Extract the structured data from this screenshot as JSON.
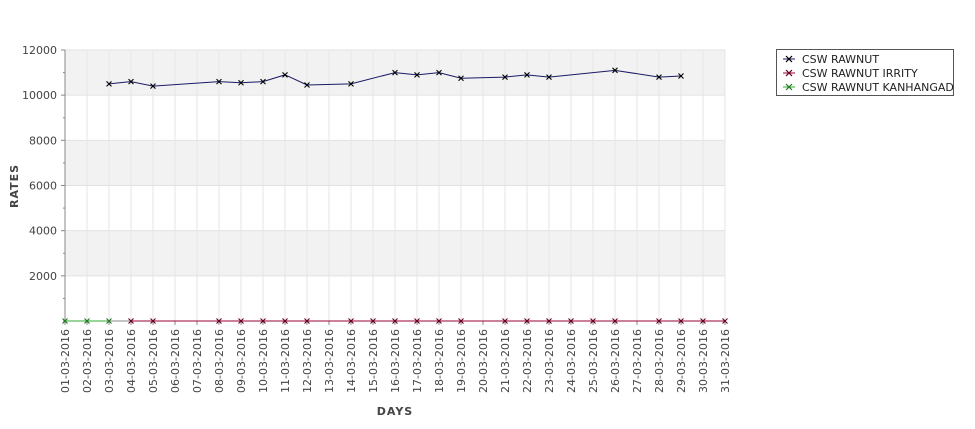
{
  "chart_data": {
    "type": "line",
    "title": "",
    "xlabel": "DAYS",
    "ylabel": "RATES",
    "ylim": [
      0,
      12000
    ],
    "yticks": [
      2000,
      4000,
      6000,
      8000,
      10000,
      12000
    ],
    "grid": true,
    "legend_position": "top-right",
    "categories": [
      "01-03-2016",
      "02-03-2016",
      "03-03-2016",
      "04-03-2016",
      "05-03-2016",
      "06-03-2016",
      "07-03-2016",
      "08-03-2016",
      "09-03-2016",
      "10-03-2016",
      "11-03-2016",
      "12-03-2016",
      "13-03-2016",
      "14-03-2016",
      "15-03-2016",
      "16-03-2016",
      "17-03-2016",
      "18-03-2016",
      "19-03-2016",
      "20-03-2016",
      "21-03-2016",
      "22-03-2016",
      "23-03-2016",
      "24-03-2016",
      "25-03-2016",
      "26-03-2016",
      "27-03-2016",
      "28-03-2016",
      "29-03-2016",
      "30-03-2016",
      "31-03-2016"
    ],
    "series": [
      {
        "name": "CSW RAWNUT",
        "color": "#1a1a66",
        "points": [
          [
            "03-03-2016",
            10500
          ],
          [
            "04-03-2016",
            10600
          ],
          [
            "05-03-2016",
            10400
          ],
          [
            "08-03-2016",
            10600
          ],
          [
            "09-03-2016",
            10550
          ],
          [
            "10-03-2016",
            10600
          ],
          [
            "11-03-2016",
            10900
          ],
          [
            "12-03-2016",
            10450
          ],
          [
            "14-03-2016",
            10500
          ],
          [
            "16-03-2016",
            11000
          ],
          [
            "17-03-2016",
            10900
          ],
          [
            "18-03-2016",
            11000
          ],
          [
            "19-03-2016",
            10750
          ],
          [
            "21-03-2016",
            10800
          ],
          [
            "22-03-2016",
            10900
          ],
          [
            "23-03-2016",
            10800
          ],
          [
            "26-03-2016",
            11100
          ],
          [
            "28-03-2016",
            10800
          ],
          [
            "29-03-2016",
            10850
          ]
        ]
      },
      {
        "name": "CSW RAWNUT IRRITY",
        "color": "#990033",
        "points": [
          [
            "04-03-2016",
            0
          ],
          [
            "05-03-2016",
            0
          ],
          [
            "08-03-2016",
            0
          ],
          [
            "09-03-2016",
            0
          ],
          [
            "10-03-2016",
            0
          ],
          [
            "11-03-2016",
            0
          ],
          [
            "12-03-2016",
            0
          ],
          [
            "14-03-2016",
            0
          ],
          [
            "15-03-2016",
            0
          ],
          [
            "16-03-2016",
            0
          ],
          [
            "17-03-2016",
            0
          ],
          [
            "18-03-2016",
            0
          ],
          [
            "19-03-2016",
            0
          ],
          [
            "21-03-2016",
            0
          ],
          [
            "22-03-2016",
            0
          ],
          [
            "23-03-2016",
            0
          ],
          [
            "24-03-2016",
            0
          ],
          [
            "25-03-2016",
            0
          ],
          [
            "26-03-2016",
            0
          ],
          [
            "28-03-2016",
            0
          ],
          [
            "29-03-2016",
            0
          ],
          [
            "30-03-2016",
            0
          ],
          [
            "31-03-2016",
            0
          ]
        ]
      },
      {
        "name": "CSW RAWNUT KANHANGAD",
        "color": "#33aa33",
        "points": [
          [
            "01-03-2016",
            0
          ],
          [
            "02-03-2016",
            0
          ],
          [
            "03-03-2016",
            0
          ]
        ]
      }
    ]
  }
}
